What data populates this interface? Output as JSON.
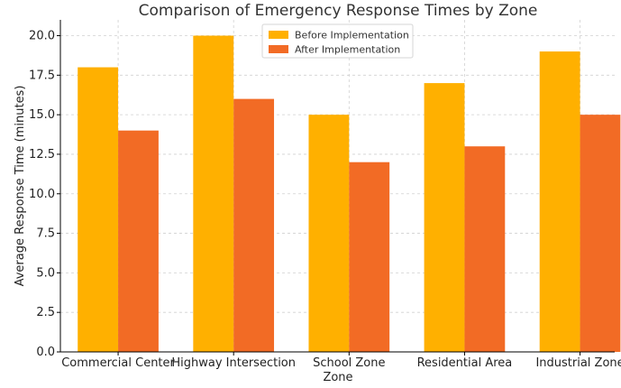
{
  "chart_data": {
    "type": "bar",
    "title": "Comparison of Emergency Response Times by Zone",
    "xlabel": "Zone",
    "ylabel": "Average Response Time (minutes)",
    "categories": [
      "Commercial Center",
      "Highway Intersection",
      "School Zone",
      "Residential Area",
      "Industrial Zone"
    ],
    "series": [
      {
        "name": "Before Implementation",
        "values": [
          18,
          20,
          15,
          17,
          19
        ],
        "color": "#FFB000"
      },
      {
        "name": "After Implementation",
        "values": [
          14,
          16,
          12,
          13,
          15
        ],
        "color": "#F26B25"
      }
    ],
    "ylim": [
      0,
      21
    ],
    "yticks": [
      0,
      2.5,
      5,
      7.5,
      10,
      12.5,
      15,
      17.5,
      20
    ],
    "ytick_labels": [
      "0.0",
      "2.5",
      "5.0",
      "7.5",
      "10.0",
      "12.5",
      "15.0",
      "17.5",
      "20.0"
    ],
    "grid": true,
    "legend_position": "top-center"
  }
}
